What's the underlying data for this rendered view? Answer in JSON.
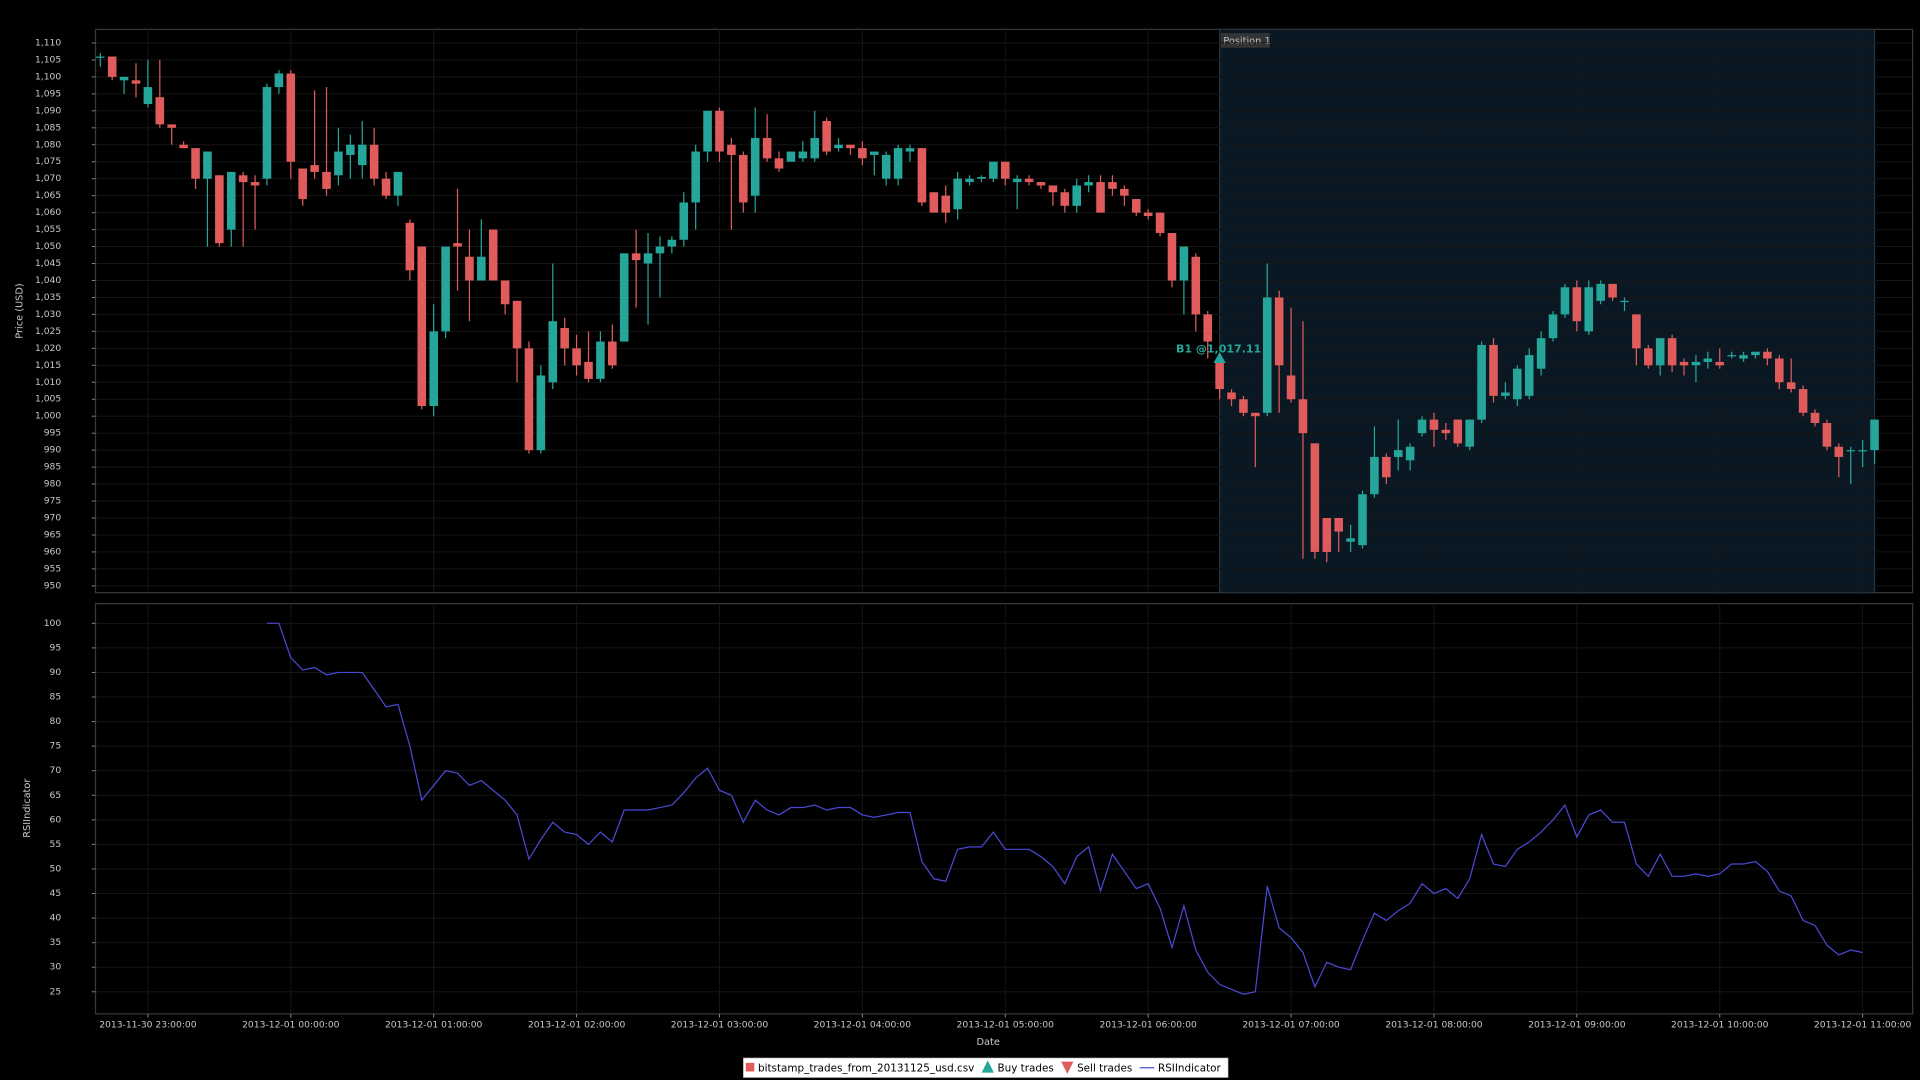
{
  "chart_data": [
    {
      "type": "candlestick",
      "ylabel": "Price (USD)",
      "series_name": "bitstamp_trades_from_20131125_usd.csv",
      "up_color": "#26a69a",
      "down_color": "#e05c5c",
      "xlim": [
        "2013-11-30 22:38:00",
        "2013-12-01 11:21:00"
      ],
      "ylim": [
        948,
        1114
      ],
      "yticks": [
        950,
        955,
        960,
        965,
        970,
        975,
        980,
        985,
        990,
        995,
        {
          "value": 1000,
          "label": "1,000"
        },
        {
          "value": 1005,
          "label": "1,005"
        },
        {
          "value": 1010,
          "label": "1,010"
        },
        {
          "value": 1015,
          "label": "1,015"
        },
        {
          "value": 1020,
          "label": "1,020"
        },
        {
          "value": 1025,
          "label": "1,025"
        },
        {
          "value": 1030,
          "label": "1,030"
        },
        {
          "value": 1035,
          "label": "1,035"
        },
        {
          "value": 1040,
          "label": "1,040"
        },
        {
          "value": 1045,
          "label": "1,045"
        },
        {
          "value": 1050,
          "label": "1,050"
        },
        {
          "value": 1055,
          "label": "1,055"
        },
        {
          "value": 1060,
          "label": "1,060"
        },
        {
          "value": 1065,
          "label": "1,065"
        },
        {
          "value": 1070,
          "label": "1,070"
        },
        {
          "value": 1075,
          "label": "1,075"
        },
        {
          "value": 1080,
          "label": "1,080"
        },
        {
          "value": 1085,
          "label": "1,085"
        },
        {
          "value": 1090,
          "label": "1,090"
        },
        {
          "value": 1095,
          "label": "1,095"
        },
        {
          "value": 1100,
          "label": "1,100"
        },
        {
          "value": 1105,
          "label": "1,105"
        },
        {
          "value": 1110,
          "label": "1,110"
        }
      ],
      "grid": true,
      "x": [
        "2013-11-30 22:40:00",
        "2013-11-30 22:45:00",
        "2013-11-30 22:50:00",
        "2013-11-30 22:55:00",
        "2013-11-30 23:00:00",
        "2013-11-30 23:05:00",
        "2013-11-30 23:10:00",
        "2013-11-30 23:15:00",
        "2013-11-30 23:20:00",
        "2013-11-30 23:25:00",
        "2013-11-30 23:30:00",
        "2013-11-30 23:35:00",
        "2013-11-30 23:40:00",
        "2013-11-30 23:45:00",
        "2013-11-30 23:50:00",
        "2013-11-30 23:55:00",
        "2013-12-01 00:00:00",
        "2013-12-01 00:05:00",
        "2013-12-01 00:10:00",
        "2013-12-01 00:15:00",
        "2013-12-01 00:20:00",
        "2013-12-01 00:25:00",
        "2013-12-01 00:30:00",
        "2013-12-01 00:35:00",
        "2013-12-01 00:40:00",
        "2013-12-01 00:45:00",
        "2013-12-01 00:50:00",
        "2013-12-01 00:55:00",
        "2013-12-01 01:00:00",
        "2013-12-01 01:05:00",
        "2013-12-01 01:10:00",
        "2013-12-01 01:15:00",
        "2013-12-01 01:20:00",
        "2013-12-01 01:25:00",
        "2013-12-01 01:30:00",
        "2013-12-01 01:35:00",
        "2013-12-01 01:40:00",
        "2013-12-01 01:45:00",
        "2013-12-01 01:50:00",
        "2013-12-01 01:55:00",
        "2013-12-01 02:00:00",
        "2013-12-01 02:05:00",
        "2013-12-01 02:10:00",
        "2013-12-01 02:15:00",
        "2013-12-01 02:20:00",
        "2013-12-01 02:25:00",
        "2013-12-01 02:30:00",
        "2013-12-01 02:35:00",
        "2013-12-01 02:40:00",
        "2013-12-01 02:45:00",
        "2013-12-01 02:50:00",
        "2013-12-01 02:55:00",
        "2013-12-01 03:00:00",
        "2013-12-01 03:05:00",
        "2013-12-01 03:10:00",
        "2013-12-01 03:15:00",
        "2013-12-01 03:20:00",
        "2013-12-01 03:25:00",
        "2013-12-01 03:30:00",
        "2013-12-01 03:35:00",
        "2013-12-01 03:40:00",
        "2013-12-01 03:45:00",
        "2013-12-01 03:50:00",
        "2013-12-01 03:55:00",
        "2013-12-01 04:00:00",
        "2013-12-01 04:05:00",
        "2013-12-01 04:10:00",
        "2013-12-01 04:15:00",
        "2013-12-01 04:20:00",
        "2013-12-01 04:25:00",
        "2013-12-01 04:30:00",
        "2013-12-01 04:35:00",
        "2013-12-01 04:40:00",
        "2013-12-01 04:45:00",
        "2013-12-01 04:50:00",
        "2013-12-01 04:55:00",
        "2013-12-01 05:00:00",
        "2013-12-01 05:05:00",
        "2013-12-01 05:10:00",
        "2013-12-01 05:15:00",
        "2013-12-01 05:20:00",
        "2013-12-01 05:25:00",
        "2013-12-01 05:30:00",
        "2013-12-01 05:35:00",
        "2013-12-01 05:40:00",
        "2013-12-01 05:45:00",
        "2013-12-01 05:50:00",
        "2013-12-01 05:55:00",
        "2013-12-01 06:00:00",
        "2013-12-01 06:05:00",
        "2013-12-01 06:10:00",
        "2013-12-01 06:15:00",
        "2013-12-01 06:20:00",
        "2013-12-01 06:25:00",
        "2013-12-01 06:30:00",
        "2013-12-01 06:35:00",
        "2013-12-01 06:40:00",
        "2013-12-01 06:45:00",
        "2013-12-01 06:50:00",
        "2013-12-01 06:55:00",
        "2013-12-01 07:00:00",
        "2013-12-01 07:05:00",
        "2013-12-01 07:10:00",
        "2013-12-01 07:15:00",
        "2013-12-01 07:20:00",
        "2013-12-01 07:25:00",
        "2013-12-01 07:30:00",
        "2013-12-01 07:35:00",
        "2013-12-01 07:40:00",
        "2013-12-01 07:45:00",
        "2013-12-01 07:50:00",
        "2013-12-01 07:55:00",
        "2013-12-01 08:00:00",
        "2013-12-01 08:05:00",
        "2013-12-01 08:10:00",
        "2013-12-01 08:15:00",
        "2013-12-01 08:20:00",
        "2013-12-01 08:25:00",
        "2013-12-01 08:30:00",
        "2013-12-01 08:35:00",
        "2013-12-01 08:40:00",
        "2013-12-01 08:45:00",
        "2013-12-01 08:50:00",
        "2013-12-01 08:55:00",
        "2013-12-01 09:00:00",
        "2013-12-01 09:05:00",
        "2013-12-01 09:10:00",
        "2013-12-01 09:15:00",
        "2013-12-01 09:20:00",
        "2013-12-01 09:25:00",
        "2013-12-01 09:30:00",
        "2013-12-01 09:35:00",
        "2013-12-01 09:40:00",
        "2013-12-01 09:45:00",
        "2013-12-01 09:50:00",
        "2013-12-01 09:55:00",
        "2013-12-01 10:00:00",
        "2013-12-01 10:05:00",
        "2013-12-01 10:10:00",
        "2013-12-01 10:15:00",
        "2013-12-01 10:20:00",
        "2013-12-01 10:25:00",
        "2013-12-01 10:30:00",
        "2013-12-01 10:35:00",
        "2013-12-01 10:40:00",
        "2013-12-01 10:45:00",
        "2013-12-01 10:50:00",
        "2013-12-01 10:55:00",
        "2013-12-01 11:00:00",
        "2013-12-01 11:05:00"
      ],
      "open": [
        1106,
        1106,
        1099,
        1099,
        1092,
        1094,
        1086,
        1080,
        1079,
        1070,
        1071,
        1055,
        1071,
        1069,
        1070,
        1097,
        1101,
        1073,
        1074,
        1072,
        1071,
        1077,
        1074,
        1080,
        1070,
        1065,
        1057,
        1050,
        1003,
        1025,
        1051,
        1047,
        1040,
        1055,
        1040,
        1034,
        1020,
        990,
        1010,
        1026,
        1020,
        1016,
        1011,
        1022,
        1022,
        1048,
        1045,
        1048,
        1050,
        1052,
        1063,
        1078,
        1090,
        1080,
        1077,
        1065,
        1082,
        1076,
        1075,
        1076,
        1076,
        1087,
        1079,
        1080,
        1079,
        1077,
        1070,
        1070,
        1078,
        1079,
        1066,
        1065,
        1061,
        1069,
        1070,
        1070,
        1075,
        1069,
        1070,
        1069,
        1068,
        1066,
        1062,
        1068,
        1069,
        1069,
        1067,
        1064,
        1060,
        1060,
        1054,
        1040,
        1047,
        1030,
        1016,
        1007,
        1005,
        1001,
        1001,
        1035,
        1012,
        1005,
        992,
        970,
        970,
        963,
        962,
        977,
        988,
        988,
        987,
        995,
        999,
        996,
        999,
        991,
        999,
        1021,
        1006,
        1005,
        1006,
        1014,
        1023,
        1030,
        1038,
        1025,
        1034,
        1039,
        1034,
        1030,
        1020,
        1015,
        1023,
        1016,
        1015,
        1016,
        1016,
        1018,
        1017,
        1018,
        1019,
        1017,
        1010,
        1008,
        1001,
        998,
        991,
        990,
        990,
        990
      ],
      "high": [
        1107,
        1106,
        1100,
        1104,
        1105,
        1105,
        1086,
        1081,
        1079,
        1078,
        1071,
        1072,
        1072,
        1071,
        1098,
        1102,
        1102,
        1073,
        1096,
        1097,
        1085,
        1083,
        1087,
        1085,
        1072,
        1072,
        1058,
        1050,
        1033,
        1050,
        1067,
        1055,
        1058,
        1055,
        1040,
        1034,
        1022,
        1015,
        1045,
        1029,
        1024,
        1025,
        1025,
        1027,
        1048,
        1055,
        1054,
        1053,
        1053,
        1066,
        1080,
        1090,
        1091,
        1082,
        1078,
        1091,
        1089,
        1078,
        1078,
        1081,
        1090,
        1088,
        1082,
        1080,
        1081,
        1078,
        1078,
        1080,
        1080,
        1079,
        1066,
        1068,
        1072,
        1071,
        1071,
        1075,
        1075,
        1071,
        1071,
        1069,
        1068,
        1067,
        1070,
        1071,
        1071,
        1071,
        1068,
        1064,
        1061,
        1060,
        1054,
        1050,
        1048,
        1031,
        1018,
        1008,
        1006,
        1001,
        1045,
        1037,
        1032,
        1028,
        992,
        970,
        970,
        968,
        978,
        997,
        989,
        999,
        992,
        1000,
        1001,
        998,
        999,
        999,
        1022,
        1023,
        1010,
        1015,
        1020,
        1025,
        1031,
        1039,
        1040,
        1040,
        1040,
        1039,
        1035,
        1030,
        1021,
        1023,
        1024,
        1017,
        1018,
        1019,
        1020,
        1019,
        1019,
        1019,
        1020,
        1018,
        1017,
        1009,
        1002,
        999,
        992,
        991,
        993,
        999
      ],
      "low": [
        1103,
        1099,
        1095,
        1094,
        1091,
        1085,
        1080,
        1079,
        1067,
        1050,
        1050,
        1050,
        1050,
        1055,
        1068,
        1095,
        1070,
        1062,
        1070,
        1065,
        1068,
        1070,
        1070,
        1068,
        1064,
        1062,
        1040,
        1002,
        1000,
        1023,
        1037,
        1028,
        1040,
        1040,
        1030,
        1010,
        989,
        989,
        1008,
        1015,
        1012,
        1010,
        1010,
        1014,
        1022,
        1032,
        1027,
        1035,
        1048,
        1050,
        1055,
        1075,
        1075,
        1055,
        1060,
        1060,
        1075,
        1072,
        1075,
        1075,
        1075,
        1077,
        1078,
        1077,
        1074,
        1071,
        1068,
        1068,
        1075,
        1062,
        1060,
        1057,
        1058,
        1068,
        1069,
        1069,
        1068,
        1061,
        1068,
        1067,
        1062,
        1060,
        1060,
        1066,
        1060,
        1065,
        1062,
        1059,
        1058,
        1053,
        1038,
        1030,
        1025,
        1017,
        1005,
        1003,
        1000,
        985,
        1000,
        1001,
        1004,
        958,
        958,
        957,
        960,
        960,
        961,
        976,
        980,
        984,
        984,
        994,
        991,
        993,
        991,
        990,
        998,
        1004,
        1005,
        1003,
        1005,
        1012,
        1022,
        1029,
        1025,
        1024,
        1033,
        1034,
        1031,
        1015,
        1014,
        1012,
        1013,
        1012,
        1010,
        1014,
        1014,
        1017,
        1016,
        1017,
        1015,
        1008,
        1007,
        1000,
        997,
        990,
        982,
        980,
        985,
        986
      ],
      "close": [
        1106,
        1100,
        1100,
        1098,
        1097,
        1086,
        1085,
        1079,
        1070,
        1078,
        1051,
        1072,
        1069,
        1068,
        1097,
        1101,
        1075,
        1064,
        1072,
        1067,
        1078,
        1080,
        1080,
        1070,
        1065,
        1072,
        1043,
        1003,
        1025,
        1050,
        1050,
        1040,
        1047,
        1040,
        1033,
        1020,
        990,
        1012,
        1028,
        1020,
        1015,
        1011,
        1022,
        1015,
        1048,
        1046,
        1048,
        1050,
        1052,
        1063,
        1078,
        1090,
        1078,
        1077,
        1063,
        1082,
        1076,
        1073,
        1078,
        1078,
        1082,
        1078,
        1080,
        1079,
        1076,
        1078,
        1077,
        1079,
        1079,
        1063,
        1060,
        1060,
        1070,
        1070,
        1070.5,
        1075,
        1070,
        1070,
        1069,
        1068,
        1066,
        1062,
        1068,
        1069,
        1060,
        1067,
        1065,
        1060,
        1059,
        1054,
        1040,
        1050,
        1030,
        1022,
        1008,
        1005,
        1001,
        1000,
        1035,
        1015,
        1005,
        995,
        960,
        960,
        966,
        964,
        977,
        988,
        982,
        990,
        991,
        999,
        996,
        995,
        992,
        999,
        1021,
        1006,
        1007,
        1014,
        1018,
        1023,
        1030,
        1038,
        1028,
        1038,
        1039,
        1035,
        1034,
        1020,
        1015,
        1023,
        1015,
        1015,
        1016,
        1017,
        1015,
        1018,
        1018,
        1019,
        1017,
        1010,
        1008,
        1001,
        998,
        991,
        988,
        990,
        990,
        999
      ],
      "buy_trades": {
        "name": "Buy trades",
        "color": "#26a69a",
        "x": [
          "2013-12-01 06:30:00"
        ],
        "values": [
          1017.11
        ],
        "value_labels": [
          "B1 @1,017.11"
        ]
      },
      "sell_trades": {
        "name": "Sell trades",
        "color": "#e05c5c",
        "x": [],
        "values": []
      },
      "position": {
        "label": "Position 1",
        "start": "2013-12-01 06:30:00",
        "end": "2013-12-01 11:05:00",
        "color": "#0a1824"
      }
    },
    {
      "type": "line",
      "ylabel": "RSIIndicator",
      "xlabel": "Date",
      "xlim": [
        "2013-11-30 22:38:00",
        "2013-12-01 11:21:00"
      ],
      "xticks": [
        "2013-11-30 23:00:00",
        "2013-12-01 00:00:00",
        "2013-12-01 01:00:00",
        "2013-12-01 02:00:00",
        "2013-12-01 03:00:00",
        "2013-12-01 04:00:00",
        "2013-12-01 05:00:00",
        "2013-12-01 06:00:00",
        "2013-12-01 07:00:00",
        "2013-12-01 08:00:00",
        "2013-12-01 09:00:00",
        "2013-12-01 10:00:00",
        "2013-12-01 11:00:00"
      ],
      "ylim": [
        20.5,
        104
      ],
      "yticks": [
        25,
        30,
        35,
        40,
        45,
        50,
        55,
        60,
        65,
        70,
        75,
        80,
        85,
        90,
        95,
        100
      ],
      "grid": true,
      "legend": "bottom",
      "series": [
        {
          "name": "RSIIndicator",
          "color": "#4a4ad6",
          "values": [
            null,
            null,
            null,
            null,
            null,
            null,
            null,
            null,
            null,
            null,
            null,
            null,
            null,
            null,
            100,
            100,
            93,
            90.5,
            91,
            89.5,
            90,
            90,
            90,
            86.5,
            83,
            83.5,
            75,
            64,
            67,
            70,
            69.5,
            67,
            68,
            66,
            64,
            61,
            52,
            56,
            59.5,
            57.5,
            57,
            55,
            57.5,
            55.5,
            62,
            62,
            62,
            62.5,
            63,
            65.5,
            68.5,
            70.5,
            66,
            65,
            59.5,
            64,
            62,
            61,
            62.5,
            62.5,
            63,
            62,
            62.5,
            62.5,
            61,
            60.5,
            61,
            61.5,
            61.5,
            51.5,
            48,
            47.5,
            54,
            54.5,
            54.5,
            57.5,
            54,
            54,
            54,
            52.5,
            50.5,
            47,
            52.5,
            54.5,
            45.5,
            53,
            49.5,
            46,
            47,
            42,
            34,
            42.5,
            33.5,
            29,
            26.5,
            25.5,
            24.5,
            25,
            46.5,
            38,
            36,
            33,
            26,
            31,
            30,
            29.5,
            35.5,
            41,
            39.5,
            41.5,
            43,
            47,
            45,
            46,
            44,
            48,
            57,
            51,
            50.5,
            54,
            55.5,
            57.5,
            60,
            63,
            56.5,
            61,
            62,
            59.5,
            59.5,
            51,
            48.5,
            53,
            48.5,
            48.5,
            49,
            48.5,
            49,
            51,
            51,
            51.5,
            49.5,
            45.5,
            44.5,
            39.5,
            38.5,
            34.5,
            32.5,
            33.5,
            33,
            null
          ]
        }
      ]
    }
  ]
}
